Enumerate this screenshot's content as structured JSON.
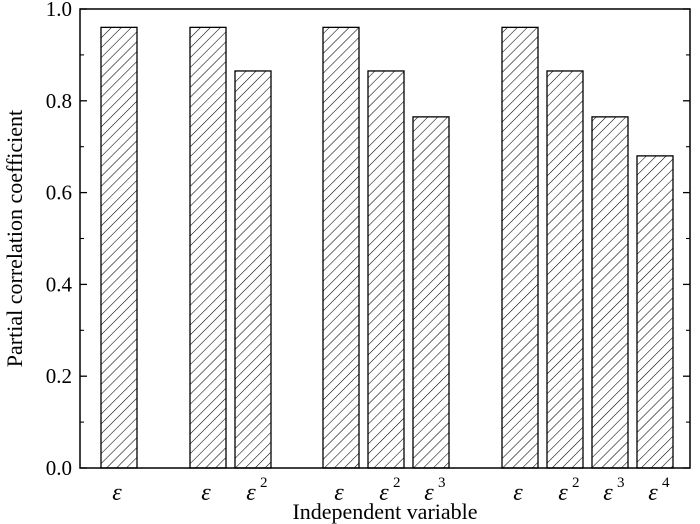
{
  "chart_data": {
    "type": "bar",
    "title": "",
    "xlabel": "Independent variable",
    "ylabel": "Partial correlation coefficient",
    "ylim": [
      0,
      1.0
    ],
    "yticks": [
      "0.0",
      "0.2",
      "0.4",
      "0.6",
      "0.8",
      "1.0"
    ],
    "grid": false,
    "legend": "none",
    "bar_fill": "diagonal-hatch",
    "groups": [
      {
        "bars": [
          {
            "label": "ε",
            "power": "",
            "value": 0.96
          }
        ]
      },
      {
        "bars": [
          {
            "label": "ε",
            "power": "",
            "value": 0.96
          },
          {
            "label": "ε",
            "power": "2",
            "value": 0.865
          }
        ]
      },
      {
        "bars": [
          {
            "label": "ε",
            "power": "",
            "value": 0.96
          },
          {
            "label": "ε",
            "power": "2",
            "value": 0.865
          },
          {
            "label": "ε",
            "power": "3",
            "value": 0.765
          }
        ]
      },
      {
        "bars": [
          {
            "label": "ε",
            "power": "",
            "value": 0.96
          },
          {
            "label": "ε",
            "power": "2",
            "value": 0.865
          },
          {
            "label": "ε",
            "power": "3",
            "value": 0.765
          },
          {
            "label": "ε",
            "power": "4",
            "value": 0.68
          }
        ]
      }
    ]
  },
  "colors": {
    "bar_stroke": "#000000",
    "hatch": "#000000",
    "background": "#ffffff"
  }
}
